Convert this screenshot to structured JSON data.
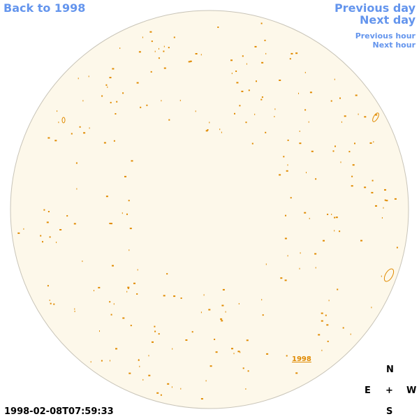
{
  "nav": {
    "back": "Back to 1998",
    "previous_day": "Previous day",
    "next_day": "Next day",
    "previous_hour": "Previous hour",
    "next_hour": "Next hour"
  },
  "timestamp": "1998-02-08T07:59:33",
  "compass": {
    "north": "N",
    "east": "E",
    "center": "+",
    "west": "W",
    "south": "S"
  },
  "label": "1998"
}
